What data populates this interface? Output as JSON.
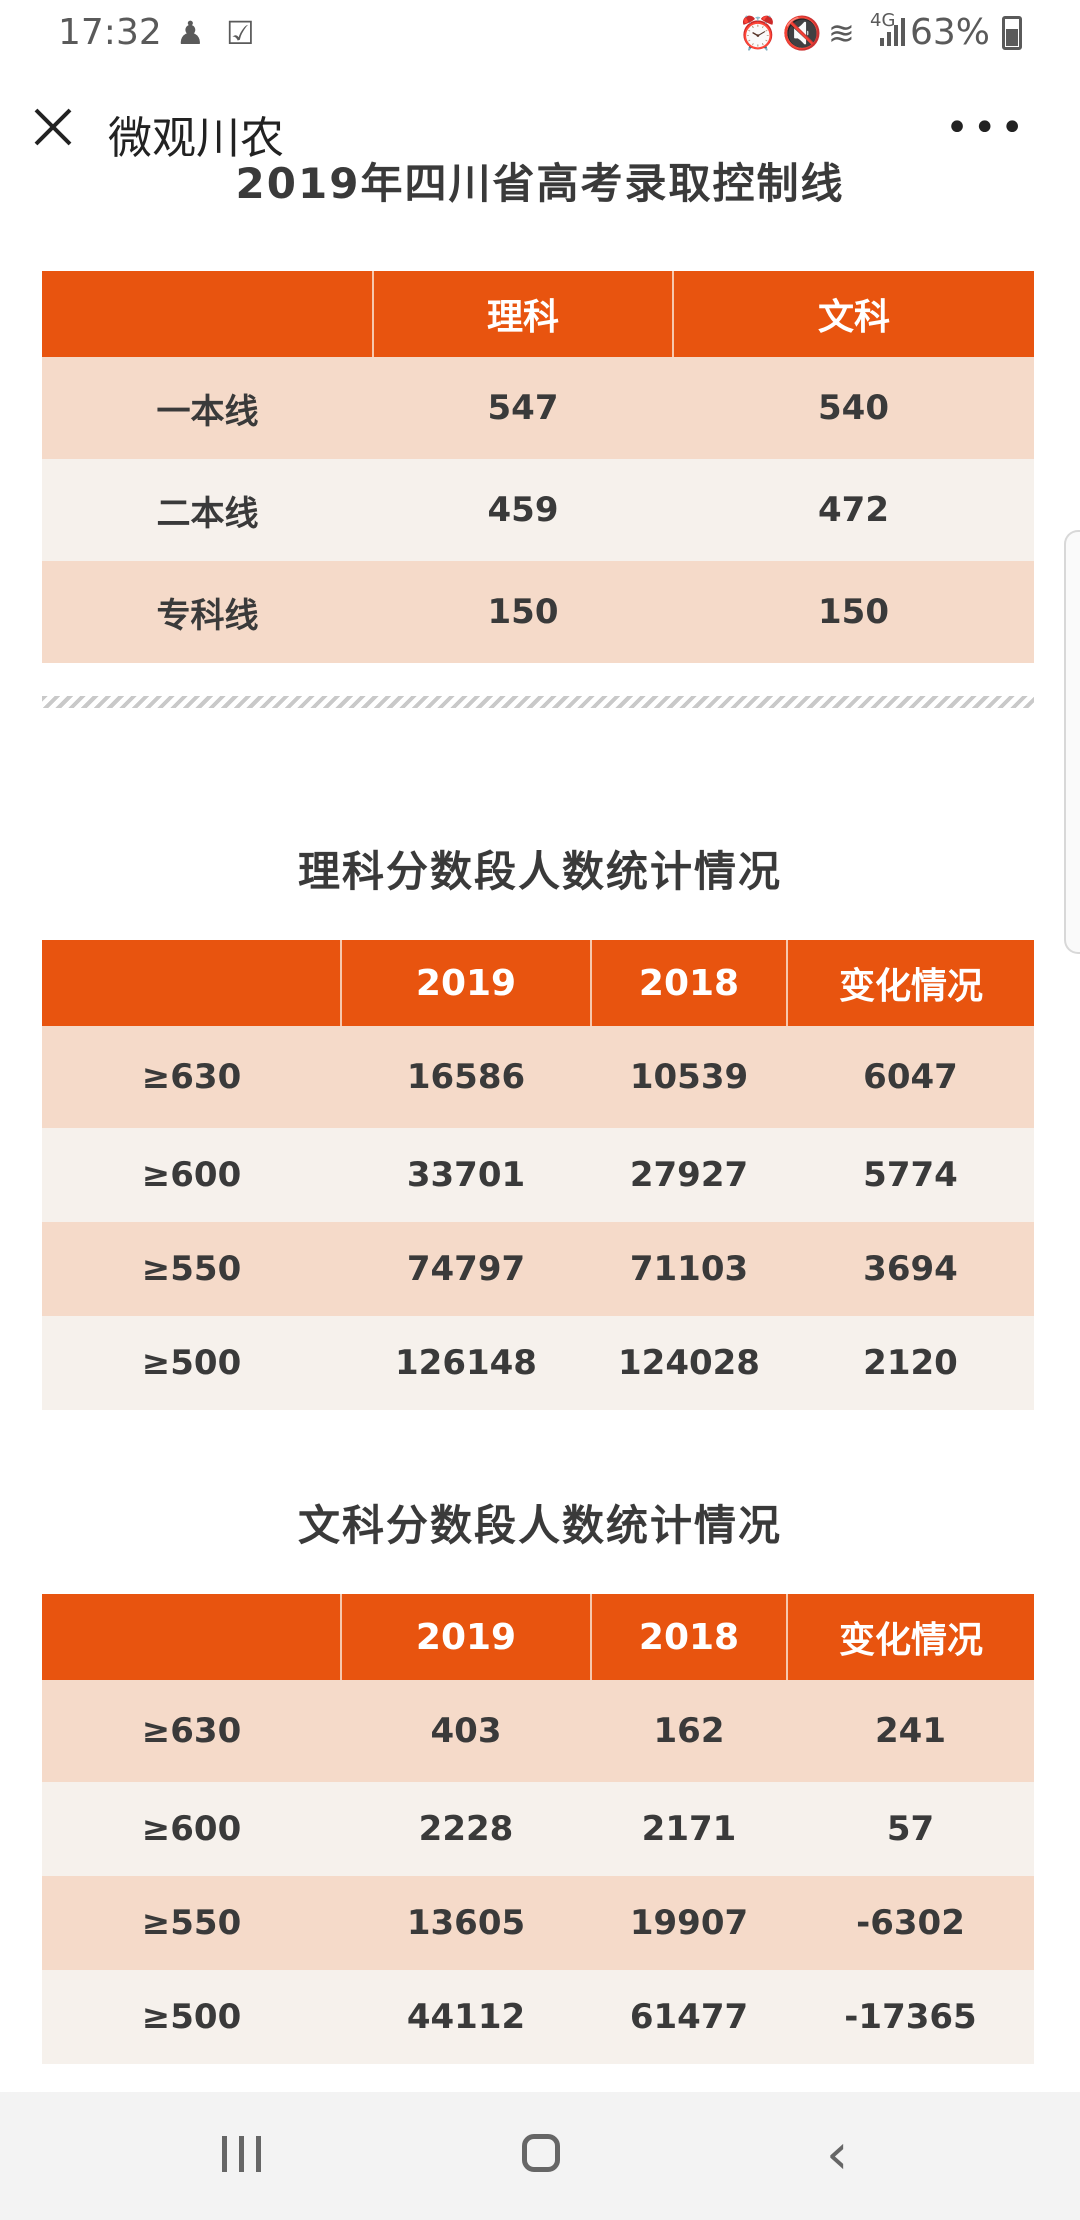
{
  "status": {
    "time": "17:32",
    "battery": "63%",
    "network": "4G"
  },
  "nav": {
    "title": "微观川农",
    "more": "•••"
  },
  "control_table": {
    "clipped_title": "2019年四川省高考录取控制线",
    "headers": [
      "",
      "理科",
      "文科"
    ],
    "rows": [
      [
        "一本线",
        "547",
        "540"
      ],
      [
        "二本线",
        "459",
        "472"
      ],
      [
        "专科线",
        "150",
        "150"
      ]
    ]
  },
  "science": {
    "title": "理科分数段人数统计情况",
    "headers": [
      "",
      "2019",
      "2018",
      "变化情况"
    ],
    "rows": [
      [
        "≥630",
        "16586",
        "10539",
        "6047"
      ],
      [
        "≥600",
        "33701",
        "27927",
        "5774"
      ],
      [
        "≥550",
        "74797",
        "71103",
        "3694"
      ],
      [
        "≥500",
        "126148",
        "124028",
        "2120"
      ]
    ]
  },
  "arts": {
    "title": "文科分数段人数统计情况",
    "headers": [
      "",
      "2019",
      "2018",
      "变化情况"
    ],
    "rows": [
      [
        "≥630",
        "403",
        "162",
        "241"
      ],
      [
        "≥600",
        "2228",
        "2171",
        "57"
      ],
      [
        "≥550",
        "13605",
        "19907",
        "-6302"
      ],
      [
        "≥500",
        "44112",
        "61477",
        "-17365"
      ]
    ]
  },
  "colors": {
    "header": "#e8540f",
    "row_odd": "#f5dac9",
    "row_even": "#f6f1ec"
  },
  "icons": {
    "status_left": [
      "person-icon",
      "checkbox-icon"
    ],
    "status_right": [
      "alarm-icon",
      "mute-icon",
      "wifi-icon",
      "signal-icon",
      "battery-icon"
    ],
    "nav": [
      "close-icon",
      "more-icon"
    ],
    "system": [
      "recent-apps-icon",
      "home-icon",
      "back-icon"
    ]
  }
}
